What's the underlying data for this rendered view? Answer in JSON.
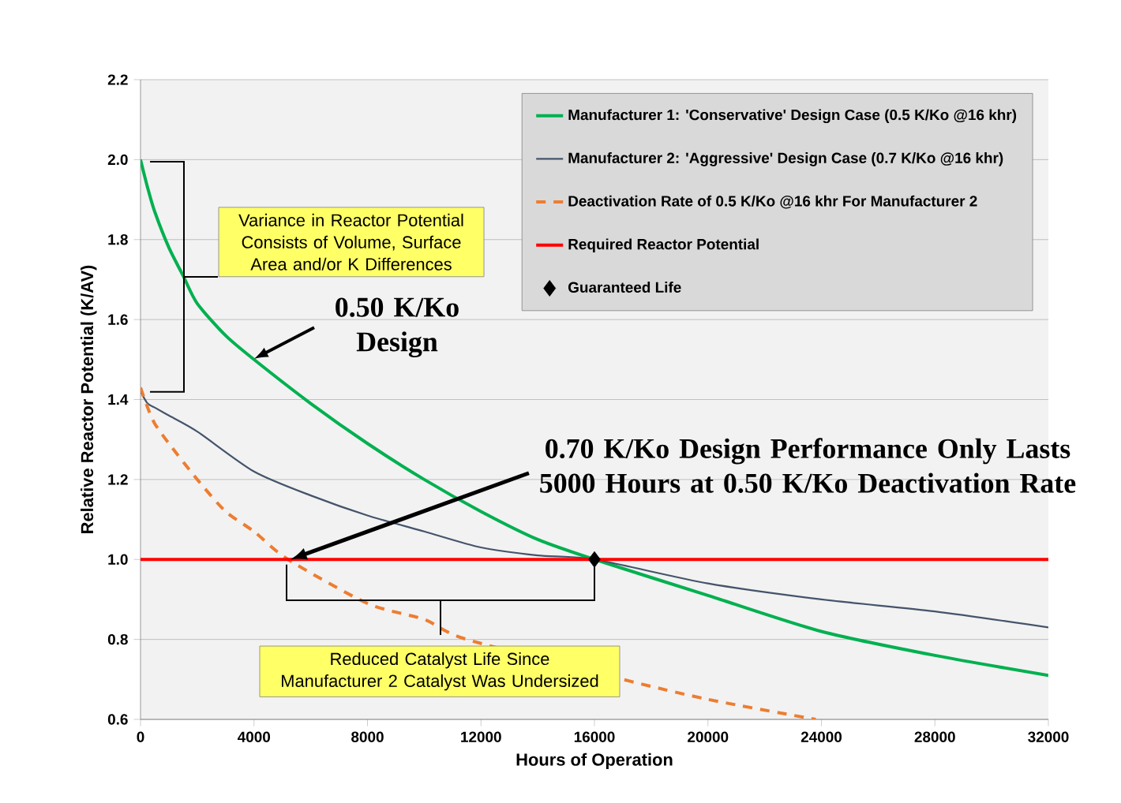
{
  "chart_data": {
    "type": "line",
    "xlabel": "Hours of Operation",
    "ylabel": "Relative Reactor Potential (K/AV)",
    "xlim": [
      0,
      32000
    ],
    "ylim": [
      0.6,
      2.2
    ],
    "xticks": [
      0,
      4000,
      8000,
      12000,
      16000,
      20000,
      24000,
      28000,
      32000
    ],
    "yticks": [
      0.6,
      0.8,
      {
        "value": 1.0,
        "label": "1.0"
      },
      1.2,
      1.4,
      1.6,
      1.8,
      {
        "value": 2.0,
        "label": "2.0"
      },
      2.2
    ],
    "grid": "y",
    "legend": "top right",
    "annotations": [
      "Variance in Reactor Potential Consists of Volume, Surface Area and/or K Differences",
      "0.50 K/Ko Design",
      "0.70 K/Ko Design Performance Only Lasts 5000 Hours at 0.50 K/Ko Deactivation Rate",
      "Reduced Catalyst Life Since Manufacturer 2 Catalyst Was Undersized"
    ],
    "series": [
      {
        "name": "Manufacturer 1: 'Conservative' Design Case (0.5 K/Ko @16 khr)",
        "color": "#00b050",
        "line_style": "solid",
        "x": [
          0,
          250,
          500,
          1000,
          1500,
          2000,
          3000,
          4000,
          6000,
          8000,
          10000,
          12000,
          14000,
          16000,
          20000,
          24000,
          28000,
          32000
        ],
        "values": [
          2.0,
          1.93,
          1.87,
          1.78,
          1.71,
          1.64,
          1.56,
          1.5,
          1.39,
          1.29,
          1.2,
          1.12,
          1.05,
          1.0,
          0.91,
          0.82,
          0.76,
          0.71
        ]
      },
      {
        "name": "Manufacturer 2: 'Aggressive' Design Case (0.7 K/Ko @16 khr)",
        "color": "#44546a",
        "line_style": "solid",
        "x": [
          0,
          250,
          500,
          1000,
          2000,
          4000,
          6000,
          8000,
          10000,
          12000,
          14000,
          16000,
          20000,
          24000,
          28000,
          32000
        ],
        "values": [
          1.42,
          1.39,
          1.38,
          1.36,
          1.32,
          1.22,
          1.16,
          1.11,
          1.07,
          1.03,
          1.01,
          1.0,
          0.94,
          0.9,
          0.87,
          0.83
        ]
      },
      {
        "name": "Deactivation Rate of 0.5 K/Ko @16 khr For Manufacturer 2",
        "color": "#ed7d31",
        "line_style": "dashed",
        "x": [
          0,
          250,
          500,
          1000,
          2000,
          3000,
          4000,
          5200,
          8000,
          10000,
          11500,
          17000,
          20000,
          23800
        ],
        "values": [
          1.43,
          1.38,
          1.34,
          1.29,
          1.2,
          1.12,
          1.07,
          1.0,
          0.89,
          0.85,
          0.8,
          0.7,
          0.65,
          0.6
        ]
      },
      {
        "name": "Required Reactor Potential",
        "color": "#ff0000",
        "line_style": "solid",
        "x": [
          0,
          32000
        ],
        "values": [
          1.0,
          1.0
        ]
      },
      {
        "name": "Guaranteed Life",
        "type": "scatter",
        "color": "#000000",
        "marker": "diamond",
        "x": [
          16000
        ],
        "values": [
          1.0
        ]
      }
    ]
  }
}
